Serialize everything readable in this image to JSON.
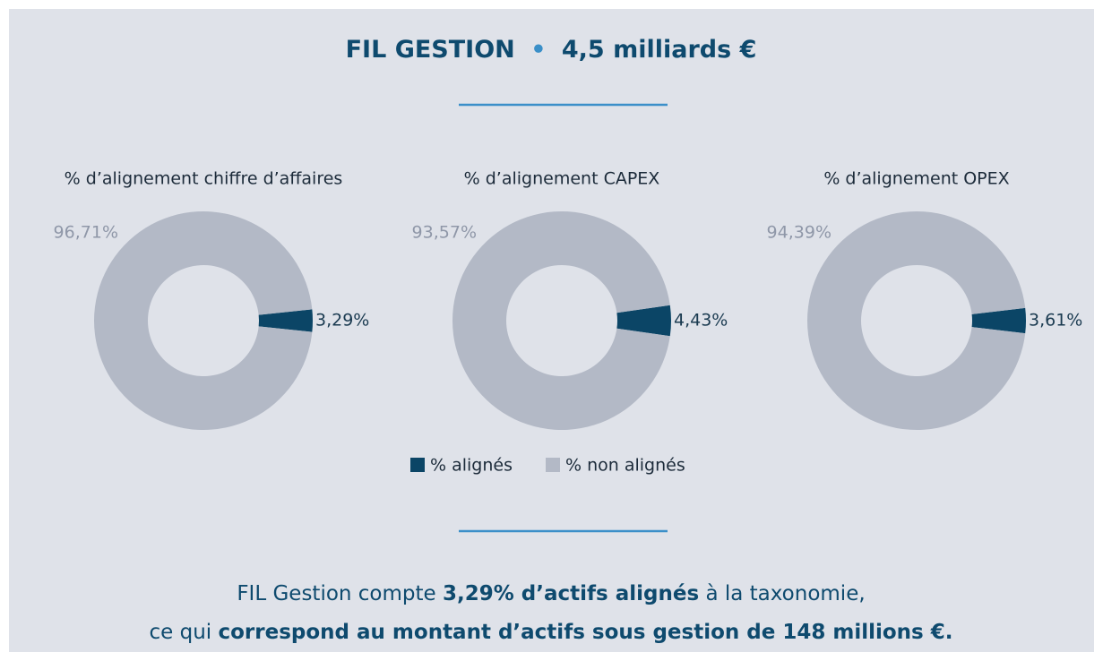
{
  "header": {
    "name": "FIL GESTION",
    "separator": "•",
    "amount": "4,5 milliards €"
  },
  "chart_data": [
    {
      "type": "pie",
      "title": "% d’alignement chiffre d’affaires",
      "values": [
        3.29,
        96.71
      ],
      "value_labels": [
        "3,29%",
        "96,71%"
      ]
    },
    {
      "type": "pie",
      "title": "% d’alignement CAPEX",
      "values": [
        4.43,
        93.57
      ],
      "value_labels": [
        "4,43%",
        "93,57%"
      ]
    },
    {
      "type": "pie",
      "title": "% d’alignement OPEX",
      "values": [
        3.61,
        94.39
      ],
      "value_labels": [
        "3,61%",
        "94,39%"
      ]
    }
  ],
  "legend": {
    "labels": [
      "% alignés",
      "% non alignés"
    ],
    "colors": [
      "#0b4566",
      "#b3b9c6"
    ]
  },
  "footer": {
    "lines": [
      [
        {
          "text": "FIL Gestion compte ",
          "bold": false
        },
        {
          "text": "3,29% d’actifs alignés",
          "bold": true
        },
        {
          "text": " à la taxonomie,",
          "bold": false
        }
      ],
      [
        {
          "text": "ce qui ",
          "bold": false
        },
        {
          "text": "correspond au montant d’actifs sous gestion de 148 millions €.",
          "bold": true
        }
      ]
    ]
  }
}
